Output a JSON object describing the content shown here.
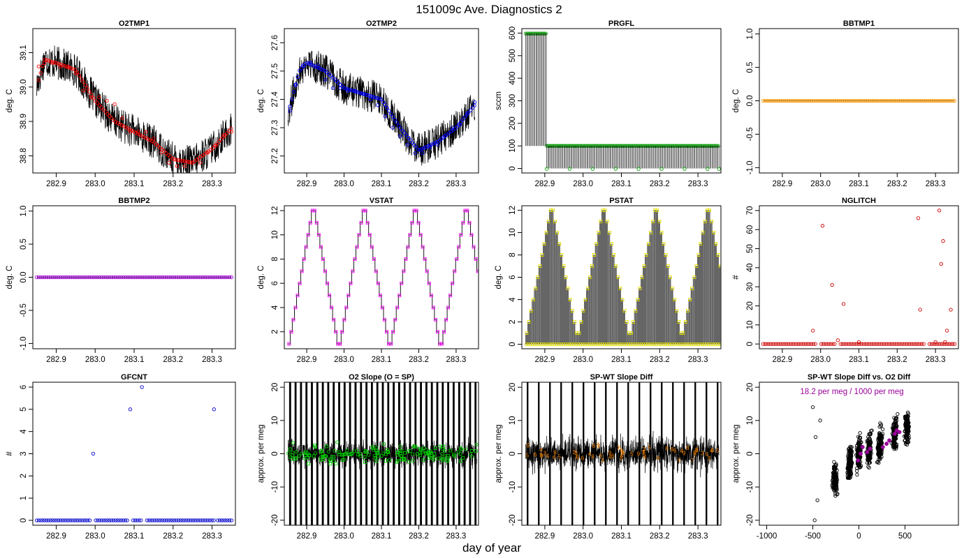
{
  "page": {
    "title": "151009c   Ave. Diagnostics 2",
    "xlabel": "day of year"
  },
  "colors": {
    "frame": "#000000",
    "text": "#000000"
  },
  "chart_data": [
    {
      "type": "line",
      "title": "O2TMP1",
      "ylabel": "deg. C",
      "xlim": [
        282.84,
        283.36
      ],
      "ylim": [
        38.75,
        39.17
      ],
      "xticks": [
        282.9,
        283.0,
        283.1,
        283.2,
        283.3
      ],
      "xtick_labels": [
        "282.9",
        "283.0",
        "283.1",
        "283.2",
        "283.3"
      ],
      "yticks": [
        38.8,
        38.9,
        39.0,
        39.1
      ],
      "ytick_labels": [
        "38.8",
        "38.9",
        "39.0",
        "39.1"
      ],
      "marker_color": "#ff0000",
      "marker": "circle",
      "line_x": [
        282.85,
        282.87,
        282.9,
        282.95,
        283.0,
        283.05,
        283.1,
        283.15,
        283.2,
        283.25,
        283.3,
        283.35
      ],
      "line_y": [
        39.0,
        39.08,
        39.07,
        39.05,
        38.96,
        38.9,
        38.87,
        38.84,
        38.79,
        38.78,
        38.82,
        38.88
      ],
      "noise": 0.05,
      "points": [
        [
          282.855,
          39.06
        ],
        [
          282.87,
          39.07
        ],
        [
          282.89,
          39.07
        ],
        [
          282.91,
          39.06
        ],
        [
          282.93,
          39.06
        ],
        [
          282.95,
          39.04
        ],
        [
          282.97,
          38.99
        ],
        [
          282.99,
          38.97
        ],
        [
          283.01,
          38.97
        ],
        [
          283.03,
          38.96
        ],
        [
          283.05,
          38.95
        ],
        [
          283.07,
          38.91
        ],
        [
          283.09,
          38.87
        ],
        [
          283.11,
          38.87
        ],
        [
          283.13,
          38.87
        ],
        [
          283.15,
          38.85
        ],
        [
          283.17,
          38.81
        ],
        [
          283.19,
          38.78
        ],
        [
          283.21,
          38.77
        ],
        [
          283.23,
          38.77
        ],
        [
          283.25,
          38.78
        ],
        [
          283.27,
          38.78
        ],
        [
          283.29,
          38.81
        ],
        [
          283.31,
          38.83
        ],
        [
          283.33,
          38.86
        ],
        [
          283.35,
          38.87
        ]
      ]
    },
    {
      "type": "line",
      "title": "O2TMP2",
      "ylabel": "deg. C",
      "xlim": [
        282.84,
        283.36
      ],
      "ylim": [
        27.14,
        27.65
      ],
      "xticks": [
        282.9,
        283.0,
        283.1,
        283.2,
        283.3
      ],
      "xtick_labels": [
        "282.9",
        "283.0",
        "283.1",
        "283.2",
        "283.3"
      ],
      "yticks": [
        27.2,
        27.3,
        27.4,
        27.5,
        27.6
      ],
      "ytick_labels": [
        "27.2",
        "27.3",
        "27.4",
        "27.5",
        "27.6"
      ],
      "marker_color": "#0000ff",
      "marker": "circle",
      "line_x": [
        282.85,
        282.88,
        282.9,
        282.95,
        283.0,
        283.05,
        283.1,
        283.15,
        283.2,
        283.25,
        283.3,
        283.35
      ],
      "line_y": [
        27.35,
        27.5,
        27.53,
        27.5,
        27.44,
        27.42,
        27.4,
        27.3,
        27.22,
        27.25,
        27.3,
        27.38
      ],
      "noise": 0.06,
      "points": [
        [
          282.855,
          27.36
        ],
        [
          282.87,
          27.45
        ],
        [
          282.89,
          27.52
        ],
        [
          282.91,
          27.53
        ],
        [
          282.93,
          27.52
        ],
        [
          282.95,
          27.47
        ],
        [
          282.97,
          27.44
        ],
        [
          282.99,
          27.44
        ],
        [
          283.01,
          27.43
        ],
        [
          283.03,
          27.43
        ],
        [
          283.05,
          27.42
        ],
        [
          283.07,
          27.4
        ],
        [
          283.09,
          27.38
        ],
        [
          283.11,
          27.34
        ],
        [
          283.13,
          27.3
        ],
        [
          283.15,
          27.27
        ],
        [
          283.17,
          27.24
        ],
        [
          283.19,
          27.21
        ],
        [
          283.21,
          27.21
        ],
        [
          283.23,
          27.23
        ],
        [
          283.25,
          27.24
        ],
        [
          283.27,
          27.27
        ],
        [
          283.29,
          27.3
        ],
        [
          283.31,
          27.31
        ],
        [
          283.33,
          27.35
        ],
        [
          283.35,
          27.39
        ]
      ]
    },
    {
      "type": "pulse",
      "title": "PRGFL",
      "ylabel": "sccm",
      "xlim": [
        282.84,
        283.36
      ],
      "ylim": [
        -20,
        620
      ],
      "xticks": [
        282.9,
        283.0,
        283.1,
        283.2,
        283.3
      ],
      "xtick_labels": [
        "282.9",
        "283.0",
        "283.1",
        "283.2",
        "283.3"
      ],
      "yticks": [
        0,
        100,
        200,
        300,
        400,
        500,
        600
      ],
      "ytick_labels": [
        "0",
        "100",
        "200",
        "300",
        "400",
        "500",
        "600"
      ],
      "marker_color": "#00a000",
      "marker": "circle",
      "segments": [
        {
          "x_start": 282.85,
          "x_end": 282.905,
          "high": 598,
          "low": 100
        },
        {
          "x_start": 282.905,
          "x_end": 283.355,
          "high": 100,
          "low": 0
        }
      ],
      "dips": [
        282.905,
        282.965,
        283.025,
        283.085,
        283.145,
        283.205,
        283.265,
        283.325,
        283.355
      ],
      "pulse_step": 0.003
    },
    {
      "type": "scatter",
      "title": "BBTMP1",
      "ylabel": "deg. C",
      "xlim": [
        282.84,
        283.36
      ],
      "ylim": [
        -1.08,
        1.08
      ],
      "xticks": [
        282.9,
        283.0,
        283.1,
        283.2,
        283.3
      ],
      "xtick_labels": [
        "282.9",
        "283.0",
        "283.1",
        "283.2",
        "283.3"
      ],
      "yticks": [
        -1.0,
        -0.5,
        0.0,
        0.5,
        1.0
      ],
      "ytick_labels": [
        "-1.0",
        "-0.5",
        "0.0",
        "0.5",
        "1.0"
      ],
      "marker_color": "#ff9900",
      "marker": "circle",
      "constant": 0.0,
      "x_start": 282.85,
      "x_end": 283.35,
      "count": 100
    },
    {
      "type": "scatter",
      "title": "BBTMP2",
      "ylabel": "deg. C",
      "xlim": [
        282.84,
        283.36
      ],
      "ylim": [
        -1.08,
        1.08
      ],
      "xticks": [
        282.9,
        283.0,
        283.1,
        283.2,
        283.3
      ],
      "xtick_labels": [
        "282.9",
        "283.0",
        "283.1",
        "283.2",
        "283.3"
      ],
      "yticks": [
        -1.0,
        -0.5,
        0.0,
        0.5,
        1.0
      ],
      "ytick_labels": [
        "-1.0",
        "-0.5",
        "0.0",
        "0.5",
        "1.0"
      ],
      "marker_color": "#9900cc",
      "marker": "circle",
      "constant": 0.0,
      "x_start": 282.85,
      "x_end": 283.35,
      "count": 100
    },
    {
      "type": "step",
      "title": "VSTAT",
      "ylabel": "deg. C",
      "xlim": [
        282.84,
        283.36
      ],
      "ylim": [
        0.6,
        12.4
      ],
      "xticks": [
        282.9,
        283.0,
        283.1,
        283.2,
        283.3
      ],
      "xtick_labels": [
        "282.9",
        "283.0",
        "283.1",
        "283.2",
        "283.3"
      ],
      "yticks": [
        2,
        4,
        6,
        8,
        10,
        12
      ],
      "ytick_labels": [
        "2",
        "4",
        "6",
        "8",
        "10",
        "12"
      ],
      "marker_color": "#ff00ff",
      "marker": "square",
      "x_start": 282.85,
      "step": 0.00568,
      "pattern": [
        1,
        2,
        3,
        4,
        5,
        6,
        7,
        8,
        9,
        10,
        11,
        12,
        12,
        11,
        10,
        9,
        8,
        7,
        6,
        5,
        4,
        3,
        2,
        1
      ],
      "repeats": 4
    },
    {
      "type": "pulse_step",
      "title": "PSTAT",
      "ylabel": "deg. C",
      "xlim": [
        282.84,
        283.36
      ],
      "ylim": [
        -0.4,
        12.4
      ],
      "xticks": [
        282.9,
        283.0,
        283.1,
        283.2,
        283.3
      ],
      "xtick_labels": [
        "282.9",
        "283.0",
        "283.1",
        "283.2",
        "283.3"
      ],
      "yticks": [
        0,
        2,
        4,
        6,
        8,
        10,
        12
      ],
      "ytick_labels": [
        "0",
        "2",
        "4",
        "6",
        "8",
        "10",
        "12"
      ],
      "marker_color": "#e0e000",
      "marker": "square",
      "x_start": 282.85,
      "step": 0.00568,
      "pattern": [
        1,
        2,
        3,
        4,
        5,
        6,
        7,
        8,
        9,
        10,
        11,
        12,
        12,
        11,
        10,
        9,
        8,
        7,
        6,
        5,
        4,
        3,
        2,
        1
      ],
      "repeats": 4
    },
    {
      "type": "scatter",
      "title": "NGLITCH",
      "ylabel": "#",
      "xlim": [
        282.84,
        283.36
      ],
      "ylim": [
        -2.5,
        72.5
      ],
      "xticks": [
        282.9,
        283.0,
        283.1,
        283.2,
        283.3
      ],
      "xtick_labels": [
        "282.9",
        "283.0",
        "283.1",
        "283.2",
        "283.3"
      ],
      "yticks": [
        0,
        10,
        20,
        30,
        40,
        50,
        60,
        70
      ],
      "ytick_labels": [
        "0",
        "10",
        "20",
        "30",
        "40",
        "50",
        "60",
        "70"
      ],
      "marker_color": "#cc0000",
      "marker": "circle",
      "baseline": 0,
      "x_start": 282.85,
      "x_end": 283.35,
      "count": 100,
      "gaps": [
        [
          282.99,
          283.0
        ],
        [
          283.04,
          283.05
        ],
        [
          283.27,
          283.28
        ]
      ],
      "points": [
        [
          283.005,
          62
        ],
        [
          283.03,
          31
        ],
        [
          283.06,
          21
        ],
        [
          282.98,
          7
        ],
        [
          283.045,
          2
        ],
        [
          283.1,
          1
        ],
        [
          283.255,
          66
        ],
        [
          283.26,
          18
        ],
        [
          283.31,
          70
        ],
        [
          283.315,
          42
        ],
        [
          283.32,
          54
        ],
        [
          283.33,
          7
        ],
        [
          283.34,
          18
        ],
        [
          283.3,
          1
        ],
        [
          283.325,
          1
        ]
      ]
    },
    {
      "type": "scatter",
      "title": "GFCNT",
      "ylabel": "#",
      "xlim": [
        282.84,
        283.36
      ],
      "ylim": [
        -0.22,
        6.22
      ],
      "xticks": [
        282.9,
        283.0,
        283.1,
        283.2,
        283.3
      ],
      "xtick_labels": [
        "282.9",
        "283.0",
        "283.1",
        "283.2",
        "283.3"
      ],
      "yticks": [
        0,
        1,
        2,
        3,
        4,
        5,
        6
      ],
      "ytick_labels": [
        "0",
        "1",
        "2",
        "3",
        "4",
        "5",
        "6"
      ],
      "marker_color": "#0000cc",
      "marker": "circle",
      "baseline": 0,
      "x_start": 282.85,
      "x_end": 283.35,
      "count": 100,
      "gaps": [
        [
          282.99,
          283.0
        ],
        [
          283.085,
          283.095
        ],
        [
          283.12,
          283.13
        ],
        [
          283.305,
          283.31
        ]
      ],
      "points": [
        [
          282.995,
          3
        ],
        [
          283.09,
          5
        ],
        [
          283.12,
          6
        ],
        [
          283.305,
          5
        ]
      ]
    },
    {
      "type": "noise",
      "title": "O2 Slope (O = SP)",
      "ylabel": "approx. per meg",
      "xlim": [
        282.84,
        283.36
      ],
      "ylim": [
        -21.5,
        21.5
      ],
      "xticks": [
        282.9,
        283.0,
        283.1,
        283.2,
        283.3
      ],
      "xtick_labels": [
        "282.9",
        "283.0",
        "283.1",
        "283.2",
        "283.3"
      ],
      "yticks": [
        -20,
        -10,
        0,
        10,
        20
      ],
      "ytick_labels": [
        "-20",
        "-10",
        "0",
        "10",
        "20"
      ],
      "marker_color": "#00cc00",
      "marker": "mixed",
      "band": 6,
      "spike_every": 0.0146,
      "spike_width": 0.004,
      "x_start": 282.85,
      "x_end": 283.355,
      "marker_count": 170,
      "marker_spread": 4.5
    },
    {
      "type": "noise",
      "title": "SP-WT Slope Diff",
      "ylabel": "approx. per meg",
      "xlim": [
        282.84,
        283.36
      ],
      "ylim": [
        -21.5,
        21.5
      ],
      "xticks": [
        282.9,
        283.0,
        283.1,
        283.2,
        283.3
      ],
      "xtick_labels": [
        "282.9",
        "283.0",
        "283.1",
        "283.2",
        "283.3"
      ],
      "yticks": [
        -20,
        -10,
        0,
        10,
        20
      ],
      "ytick_labels": [
        "-20",
        "-10",
        "0",
        "10",
        "20"
      ],
      "marker_color": "#ff8800",
      "marker": "digits",
      "band": 8,
      "spike_every": 0.0292,
      "spike_width": 0.003,
      "x_start": 282.85,
      "x_end": 283.355,
      "marker_count": 60,
      "marker_spread": 4.0
    },
    {
      "type": "cluster_scatter",
      "title": "SP-WT Slope Diff vs. O2 Diff",
      "ylabel": "approx. per meg",
      "xlim": [
        -1080,
        1080
      ],
      "ylim": [
        -21.5,
        21.5
      ],
      "xticks": [
        -1000,
        -500,
        0,
        500
      ],
      "xtick_labels": [
        "-1000",
        "-500",
        "0",
        "500"
      ],
      "yticks": [
        -20,
        -10,
        0,
        10,
        20
      ],
      "ytick_labels": [
        "-20",
        "-10",
        "0",
        "10",
        "20"
      ],
      "marker_color": "#000000",
      "highlight_color": "#990099",
      "annotation": "18.2 per meg / 1000 per meg",
      "clusters": [
        [
          -260,
          0,
          -8
        ],
        [
          -100,
          1.2,
          -3
        ],
        [
          0,
          2,
          0
        ],
        [
          110,
          3,
          1
        ],
        [
          230,
          2,
          3
        ],
        [
          390,
          2,
          6
        ],
        [
          520,
          1,
          8
        ]
      ],
      "cluster_count": 260,
      "cluster_xspread": 40,
      "cluster_yspread": 5,
      "highlights": [
        [
          -10,
          -2
        ],
        [
          20,
          0
        ],
        [
          40,
          2
        ],
        [
          90,
          0.5
        ],
        [
          120,
          1.5
        ],
        [
          260,
          2
        ],
        [
          300,
          3
        ],
        [
          330,
          4
        ],
        [
          390,
          6
        ],
        [
          410,
          7
        ],
        [
          440,
          6.5
        ]
      ],
      "outliers": [
        [
          -480,
          -20
        ],
        [
          -470,
          5
        ],
        [
          -420,
          10
        ],
        [
          -500,
          14
        ],
        [
          -450,
          -14
        ]
      ]
    }
  ]
}
